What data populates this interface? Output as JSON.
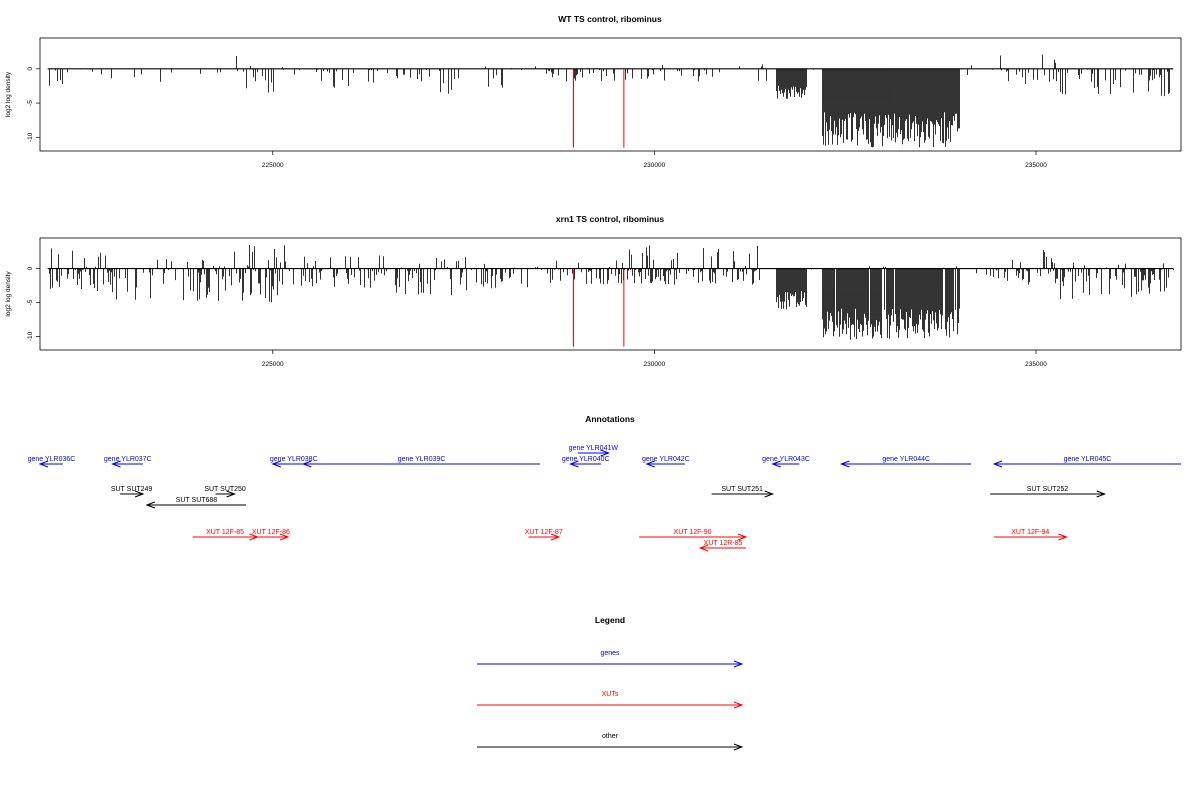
{
  "chart_data": [
    {
      "type": "bar",
      "title": "WT TS control, ribominus",
      "ylabel": "log2 log density",
      "xlabel": "",
      "xlim": [
        221950,
        236900
      ],
      "ylim": [
        -12,
        4.5
      ],
      "yticks": [
        0,
        -5,
        -10
      ],
      "xticks": [
        225000,
        230000,
        235000
      ],
      "tick_labels_x": [
        "225000",
        "230000",
        "235000"
      ],
      "tick_labels_y": [
        "0",
        "-5",
        "-10"
      ],
      "red_markers_x": [
        228940,
        229600
      ],
      "series": [
        {
          "segments": [
            {
              "from": 222050,
              "to": 222300,
              "density": 0.35,
              "min": -2.5,
              "max": 0
            },
            {
              "from": 222300,
              "to": 223000,
              "density": 0.15,
              "min": -2.5,
              "max": 1.5
            },
            {
              "from": 223000,
              "to": 224000,
              "density": 0.12,
              "min": -2,
              "max": 0
            },
            {
              "from": 224000,
              "to": 224600,
              "density": 0.12,
              "min": -2,
              "max": 2.5
            },
            {
              "from": 224600,
              "to": 225300,
              "density": 0.45,
              "min": -3.5,
              "max": 0.5
            },
            {
              "from": 225300,
              "to": 226500,
              "density": 0.3,
              "min": -3,
              "max": 0
            },
            {
              "from": 226500,
              "to": 227500,
              "density": 0.3,
              "min": -4,
              "max": 0
            },
            {
              "from": 227500,
              "to": 228500,
              "density": 0.2,
              "min": -3,
              "max": 0.5
            },
            {
              "from": 228500,
              "to": 229700,
              "density": 0.2,
              "min": -2,
              "max": 2
            },
            {
              "from": 229700,
              "to": 231000,
              "density": 0.2,
              "min": -2,
              "max": 2.5
            },
            {
              "from": 231000,
              "to": 231600,
              "density": 0.15,
              "min": -2,
              "max": 1
            },
            {
              "from": 231600,
              "to": 232000,
              "density": 1.0,
              "min": -4.5,
              "max": 0
            },
            {
              "from": 232000,
              "to": 232200,
              "density": 0.08,
              "min": -1,
              "max": 0
            },
            {
              "from": 232200,
              "to": 234000,
              "density": 1.0,
              "min": -11.5,
              "max": 0
            },
            {
              "from": 234000,
              "to": 234400,
              "density": 0.1,
              "min": -1.5,
              "max": 0.5
            },
            {
              "from": 234400,
              "to": 235300,
              "density": 0.3,
              "min": -2.5,
              "max": 2.5
            },
            {
              "from": 235300,
              "to": 236800,
              "density": 0.45,
              "min": -4,
              "max": 0
            }
          ]
        }
      ]
    },
    {
      "type": "bar",
      "title": "xrn1 TS control, ribominus",
      "ylabel": "log2 log density",
      "xlabel": "",
      "xlim": [
        221950,
        236900
      ],
      "ylim": [
        -12,
        4.5
      ],
      "yticks": [
        0,
        -5,
        -10
      ],
      "xticks": [
        225000,
        230000,
        235000
      ],
      "tick_labels_x": [
        "225000",
        "230000",
        "235000"
      ],
      "tick_labels_y": [
        "0",
        "-5",
        "-10"
      ],
      "red_markers_x": [
        228940,
        229600
      ],
      "series": [
        {
          "segments": [
            {
              "from": 222050,
              "to": 222900,
              "density": 0.55,
              "min": -3.5,
              "max": 3
            },
            {
              "from": 222900,
              "to": 224000,
              "density": 0.3,
              "min": -5,
              "max": 1.5
            },
            {
              "from": 224000,
              "to": 225200,
              "density": 0.7,
              "min": -5,
              "max": 3.5
            },
            {
              "from": 225200,
              "to": 226600,
              "density": 0.5,
              "min": -3,
              "max": 2
            },
            {
              "from": 226600,
              "to": 227800,
              "density": 0.55,
              "min": -4,
              "max": 2
            },
            {
              "from": 227800,
              "to": 228500,
              "density": 0.35,
              "min": -3,
              "max": 0.5
            },
            {
              "from": 228500,
              "to": 229600,
              "density": 0.45,
              "min": -2.5,
              "max": 2.5
            },
            {
              "from": 229600,
              "to": 231400,
              "density": 0.65,
              "min": -2.5,
              "max": 3.5
            },
            {
              "from": 231600,
              "to": 232000,
              "density": 1.0,
              "min": -6,
              "max": 0
            },
            {
              "from": 232000,
              "to": 232200,
              "density": 0.08,
              "min": -1,
              "max": 0
            },
            {
              "from": 232200,
              "to": 234000,
              "density": 1.0,
              "min": -10.5,
              "max": 0.5
            },
            {
              "from": 234000,
              "to": 234400,
              "density": 0.1,
              "min": -1.5,
              "max": 0.5
            },
            {
              "from": 234400,
              "to": 235300,
              "density": 0.5,
              "min": -2.5,
              "max": 3
            },
            {
              "from": 235300,
              "to": 236800,
              "density": 0.55,
              "min": -4.5,
              "max": 1
            }
          ]
        }
      ]
    }
  ],
  "annotations": {
    "title": "Annotations",
    "features": [
      {
        "label": "gene YLR036C",
        "type": "genes",
        "from": 222250,
        "to": 221950,
        "dir": "rev",
        "row": 0
      },
      {
        "label": "gene YLR037C",
        "type": "genes",
        "from": 223300,
        "to": 222900,
        "dir": "rev",
        "row": 0
      },
      {
        "label": "gene YLR038C",
        "type": "genes",
        "from": 225550,
        "to": 225000,
        "dir": "rev",
        "row": 0
      },
      {
        "label": "gene YLR039C",
        "type": "genes",
        "from": 228500,
        "to": 225400,
        "dir": "rev",
        "row": 0
      },
      {
        "label": "gene YLR040C",
        "type": "genes",
        "from": 229300,
        "to": 228900,
        "dir": "rev",
        "row": 0
      },
      {
        "label": "gene YLR041W",
        "type": "genes",
        "from": 229000,
        "to": 229400,
        "dir": "fwd",
        "row": -1
      },
      {
        "label": "gene YLR042C",
        "type": "genes",
        "from": 230400,
        "to": 229900,
        "dir": "rev",
        "row": 0
      },
      {
        "label": "gene YLR043C",
        "type": "genes",
        "from": 231900,
        "to": 231550,
        "dir": "rev",
        "row": 0
      },
      {
        "label": "gene YLR044C",
        "type": "genes",
        "from": 234150,
        "to": 232450,
        "dir": "rev",
        "row": 0
      },
      {
        "label": "gene YLR045C",
        "type": "genes",
        "from": 236900,
        "to": 234450,
        "dir": "rev",
        "row": 0
      },
      {
        "label": "SUT SUT249",
        "type": "other",
        "from": 223000,
        "to": 223300,
        "dir": "fwd",
        "row": 1
      },
      {
        "label": "SUT SUT250",
        "type": "other",
        "from": 224250,
        "to": 224500,
        "dir": "fwd",
        "row": 1
      },
      {
        "label": "SUT SUT688",
        "type": "other",
        "from": 224650,
        "to": 223350,
        "dir": "rev",
        "row": 2
      },
      {
        "label": "SUT SUT251",
        "type": "other",
        "from": 230750,
        "to": 231550,
        "dir": "fwd",
        "row": 1
      },
      {
        "label": "SUT SUT252",
        "type": "other",
        "from": 234400,
        "to": 235900,
        "dir": "fwd",
        "row": 1
      },
      {
        "label": "XUT 12F-85",
        "type": "XUTs",
        "from": 223950,
        "to": 224800,
        "dir": "fwd",
        "row": 3
      },
      {
        "label": "XUT 12F-86",
        "type": "XUTs",
        "from": 224750,
        "to": 225200,
        "dir": "fwd",
        "row": 3
      },
      {
        "label": "XUT 12F-87",
        "type": "XUTs",
        "from": 228350,
        "to": 228750,
        "dir": "fwd",
        "row": 3
      },
      {
        "label": "XUT 12F-90",
        "type": "XUTs",
        "from": 229800,
        "to": 231200,
        "dir": "fwd",
        "row": 3
      },
      {
        "label": "XUT 12R-85",
        "type": "XUTs",
        "from": 231200,
        "to": 230600,
        "dir": "rev",
        "row": 4
      },
      {
        "label": "XUT 12F-94",
        "type": "XUTs",
        "from": 234450,
        "to": 235400,
        "dir": "fwd",
        "row": 3
      }
    ]
  },
  "legend": {
    "title": "Legend",
    "items": [
      {
        "label": "genes",
        "color": "#0000ff"
      },
      {
        "label": "XUTs",
        "color": "#ff0000"
      },
      {
        "label": "other",
        "color": "#000000"
      }
    ]
  },
  "colors": {
    "genes": "#0000ff",
    "XUTs": "#ff0000",
    "other": "#000000",
    "marker": "#ff0000",
    "bars": "#000000"
  }
}
